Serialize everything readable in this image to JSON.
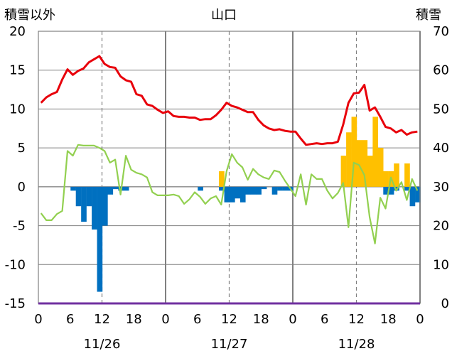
{
  "chart_data": {
    "type": "bar+line",
    "title": "山口",
    "left_axis_label": "積雪以外",
    "right_axis_label": "積雪",
    "left_ylim": [
      -15,
      20
    ],
    "left_ticks": [
      "20",
      "15",
      "10",
      "5",
      "0",
      "-5",
      "-10",
      "-15"
    ],
    "right_ylim": [
      0,
      70
    ],
    "right_ticks": [
      "70",
      "60",
      "50",
      "40",
      "30",
      "20",
      "10",
      "0"
    ],
    "x_hours_total": 72,
    "x_tick_labels": [
      "0",
      "6",
      "12",
      "18",
      "0",
      "6",
      "12",
      "18",
      "0",
      "6",
      "12",
      "18",
      "0"
    ],
    "date_labels": [
      "11/26",
      "11/27",
      "11/28"
    ],
    "colors": {
      "temperature": "#e8000b",
      "green_series": "#92d050",
      "blue_bars": "#0070c0",
      "orange_bars": "#ffc000",
      "purple_baseline": "#7030a0",
      "grid_solid": "#808080",
      "grid_dashed": "#808080"
    },
    "series": [
      {
        "name": "temperature",
        "axis": "left",
        "values": [
          10.8,
          11.5,
          11.9,
          12.2,
          13.8,
          15.1,
          14.4,
          14.9,
          15.2,
          16.0,
          16.4,
          16.8,
          15.8,
          15.4,
          15.3,
          14.2,
          13.7,
          13.5,
          11.9,
          11.7,
          10.6,
          10.4,
          9.9,
          9.5,
          9.7,
          9.1,
          9.0,
          9.0,
          8.9,
          8.9,
          8.6,
          8.7,
          8.7,
          9.2,
          9.9,
          10.8,
          10.4,
          10.2,
          9.9,
          9.6,
          9.6,
          8.6,
          7.9,
          7.5,
          7.3,
          7.4,
          7.2,
          7.1,
          7.1,
          6.2,
          5.4,
          5.5,
          5.6,
          5.5,
          5.6,
          5.6,
          5.8,
          8.0,
          10.8,
          12.0,
          12.1,
          13.1,
          9.8,
          10.2,
          9.0,
          7.7,
          7.5,
          7.0,
          7.3,
          6.7,
          7.0,
          7.1
        ]
      },
      {
        "name": "green_series",
        "axis": "left",
        "values": [
          -3.4,
          -4.3,
          -4.3,
          -3.5,
          -3.1,
          4.6,
          4.0,
          5.4,
          5.3,
          5.3,
          5.3,
          5.0,
          4.6,
          3.1,
          3.5,
          -1.0,
          4.0,
          2.2,
          1.8,
          1.6,
          1.2,
          -0.7,
          -1.1,
          -1.1,
          -1.1,
          -1.0,
          -1.2,
          -2.2,
          -1.6,
          -0.7,
          -1.3,
          -2.2,
          -1.5,
          -1.2,
          -2.3,
          2.0,
          4.2,
          3.1,
          2.5,
          0.9,
          2.3,
          1.6,
          1.2,
          1.0,
          2.1,
          1.9,
          0.8,
          -0.2,
          -1.2,
          1.6,
          -2.3,
          1.6,
          1.0,
          1.0,
          -0.5,
          -1.5,
          -0.8,
          0.5,
          -5.2,
          3.1,
          2.8,
          1.5,
          -3.9,
          -7.3,
          -1.4,
          -2.8,
          1.2,
          -0.5,
          0.6,
          -1.7,
          1.0,
          -0.5
        ]
      },
      {
        "name": "blue_bars",
        "axis": "left",
        "values": [
          0,
          0,
          0,
          0,
          0,
          0,
          -0.5,
          -2.5,
          -4.5,
          -2.5,
          -5.5,
          -13.5,
          -5.0,
          -1.0,
          -0.3,
          -0.5,
          -0.5,
          0,
          0,
          0,
          0,
          0,
          0,
          0,
          0,
          0,
          0,
          0,
          0,
          0,
          -0.5,
          0,
          0,
          0,
          -0.5,
          -2.0,
          -2.0,
          -1.5,
          -2.0,
          -1.0,
          -1.0,
          -1.0,
          -0.3,
          0,
          -1.0,
          -0.5,
          -0.5,
          -0.5,
          0,
          0,
          0,
          0,
          0,
          0,
          0,
          0,
          0,
          0,
          0,
          0,
          0,
          0,
          0,
          0,
          0,
          -1.0,
          -1.0,
          -0.5,
          0,
          -0.5,
          -2.5,
          -2.0
        ]
      },
      {
        "name": "orange_bars",
        "axis": "left",
        "values": [
          0,
          0,
          0,
          0,
          0,
          0,
          0,
          0,
          0,
          0,
          0,
          0,
          0,
          0,
          0,
          0,
          0,
          0,
          0,
          0,
          0,
          0,
          0,
          0,
          0,
          0,
          0,
          0,
          0,
          0,
          0,
          0,
          0,
          0,
          2.0,
          0,
          0,
          0,
          0,
          0,
          0,
          0,
          0,
          0,
          0,
          0,
          0,
          0,
          0,
          0,
          0,
          0,
          0,
          0,
          0,
          0,
          0,
          4.0,
          7.0,
          9.0,
          6.0,
          6.0,
          4.0,
          9.0,
          5.0,
          2.0,
          2.0,
          3.0,
          0,
          3.0,
          0,
          0
        ]
      }
    ]
  }
}
